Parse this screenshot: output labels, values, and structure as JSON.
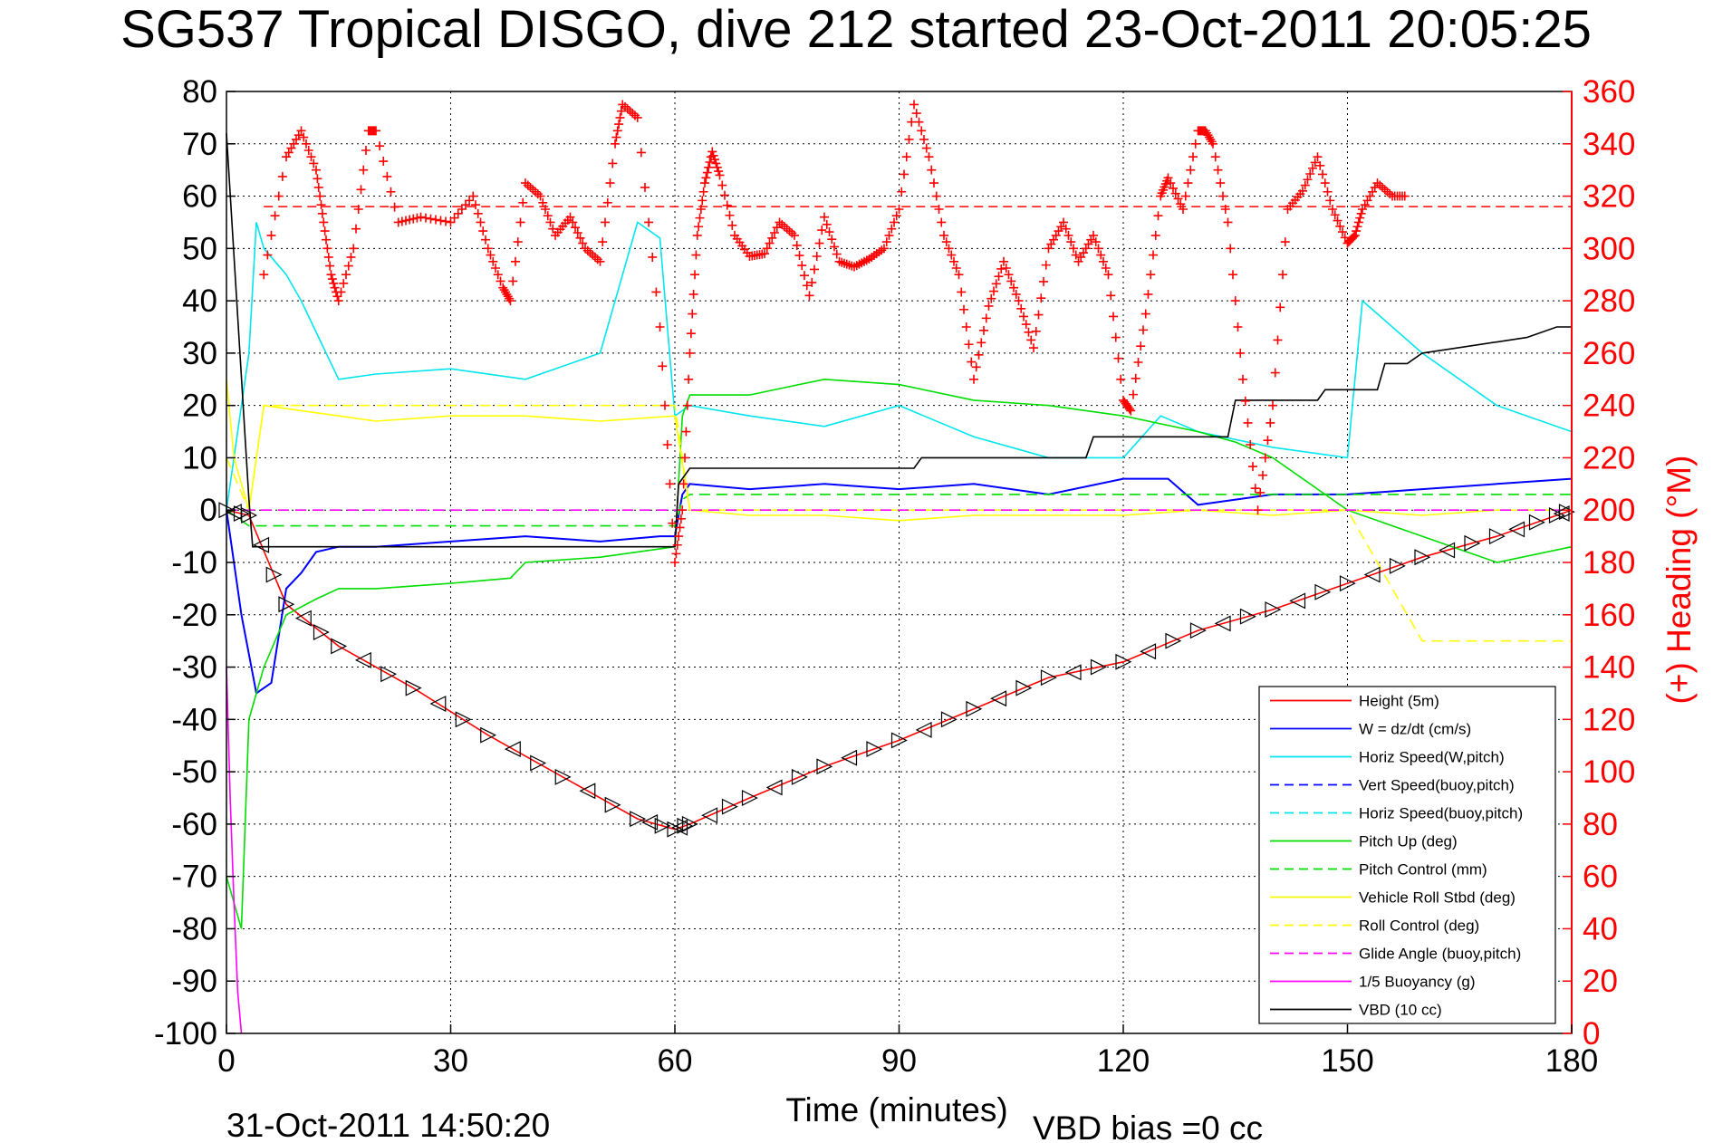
{
  "chart_data": {
    "type": "line",
    "title": "SG537 Tropical DISGO, dive 212 started 23-Oct-2011 20:05:25",
    "xlabel": "Time (minutes)",
    "ylabel": "",
    "y2label": "(+) Heading (°M)",
    "xlim": [
      0,
      180
    ],
    "ylim": [
      -100,
      80
    ],
    "y2lim": [
      0,
      360
    ],
    "x_ticks": [
      "0",
      "30",
      "60",
      "90",
      "120",
      "150",
      "180"
    ],
    "y_ticks": [
      "80",
      "70",
      "60",
      "50",
      "40",
      "30",
      "20",
      "10",
      "0",
      "-10",
      "-20",
      "-30",
      "-40",
      "-50",
      "-60",
      "-70",
      "-80",
      "-90",
      "-100"
    ],
    "y2_ticks": [
      "360",
      "340",
      "320",
      "300",
      "280",
      "260",
      "240",
      "220",
      "200",
      "180",
      "160",
      "140",
      "120",
      "100",
      "80",
      "60",
      "40",
      "20",
      "0"
    ],
    "grid": true,
    "legend_position": "lower-right",
    "footer_date": "31-Oct-2011 14:50:20",
    "footer_bias": "VBD bias =0 cc",
    "heading_reference": 316,
    "series": [
      {
        "name": "Height (5m)",
        "color": "#ff0000",
        "style": "solid",
        "x": [
          0,
          3,
          8,
          15,
          25,
          35,
          45,
          55,
          60,
          62,
          70,
          80,
          90,
          100,
          110,
          120,
          130,
          140,
          150,
          160,
          170,
          178,
          180
        ],
        "y": [
          0,
          -1,
          -18,
          -26,
          -34,
          -43,
          -51,
          -59,
          -61,
          -60,
          -55,
          -49,
          -44,
          -38,
          -32,
          -29,
          -23,
          -19,
          -14,
          -9,
          -5,
          -1,
          0
        ]
      },
      {
        "name": "W = dz/dt (cm/s)",
        "color": "#0000ff",
        "style": "solid",
        "x": [
          0,
          2,
          4,
          6,
          8,
          10,
          12,
          15,
          20,
          30,
          40,
          50,
          58,
          60,
          61,
          62,
          70,
          80,
          90,
          100,
          110,
          120,
          126,
          130,
          140,
          150,
          160,
          170,
          180
        ],
        "y": [
          0,
          -20,
          -35,
          -33,
          -15,
          -12,
          -8,
          -7,
          -7,
          -6,
          -5,
          -6,
          -5,
          -5,
          3,
          5,
          4,
          5,
          4,
          5,
          3,
          6,
          6,
          1,
          3,
          3,
          4,
          5,
          6
        ]
      },
      {
        "name": "Horiz Speed(W,pitch)",
        "color": "#00e5ee",
        "style": "solid",
        "x": [
          0,
          3,
          4,
          5,
          8,
          10,
          15,
          20,
          30,
          40,
          50,
          55,
          58,
          60,
          62,
          70,
          80,
          90,
          100,
          110,
          120,
          125,
          130,
          140,
          150,
          152,
          160,
          170,
          180
        ],
        "y": [
          0,
          30,
          55,
          50,
          45,
          40,
          25,
          26,
          27,
          25,
          30,
          55,
          52,
          18,
          20,
          18,
          16,
          20,
          14,
          10,
          10,
          18,
          15,
          12,
          10,
          40,
          30,
          20,
          15
        ]
      },
      {
        "name": "Vert Speed(buoy,pitch)",
        "color": "#0000ff",
        "style": "dashed",
        "x": [],
        "y": []
      },
      {
        "name": "Horiz Speed(buoy,pitch)",
        "color": "#00e5ee",
        "style": "dashed",
        "x": [],
        "y": []
      },
      {
        "name": "Pitch Up (deg)",
        "color": "#00dd00",
        "style": "solid",
        "x": [
          0,
          2,
          3,
          5,
          8,
          12,
          15,
          20,
          30,
          38,
          40,
          50,
          55,
          60,
          61,
          62,
          70,
          80,
          90,
          100,
          110,
          120,
          130,
          135,
          140,
          150,
          160,
          170,
          180
        ],
        "y": [
          -70,
          -80,
          -40,
          -30,
          -20,
          -17,
          -15,
          -15,
          -14,
          -13,
          -10,
          -9,
          -8,
          -7,
          18,
          22,
          22,
          25,
          24,
          21,
          20,
          18,
          15,
          13,
          10,
          0,
          -5,
          -10,
          -7
        ]
      },
      {
        "name": "Pitch Control (mm)",
        "color": "#00dd00",
        "style": "dashed",
        "x": [
          0,
          3,
          5,
          60,
          61,
          62,
          120,
          130,
          150,
          180
        ],
        "y": [
          0,
          -3,
          -3,
          -3,
          2,
          3,
          3,
          3,
          3,
          3
        ]
      },
      {
        "name": "Vehicle Roll Stbd (deg)",
        "color": "#ffff00",
        "style": "solid",
        "x": [
          0,
          1,
          3,
          5,
          10,
          20,
          30,
          40,
          50,
          60,
          62,
          70,
          80,
          90,
          100,
          110,
          120,
          130,
          140,
          150,
          160,
          170,
          180
        ],
        "y": [
          25,
          10,
          0,
          20,
          19,
          17,
          18,
          18,
          17,
          18,
          0,
          -1,
          -1,
          -2,
          -1,
          -1,
          -1,
          0,
          -1,
          0,
          -1,
          0,
          0
        ]
      },
      {
        "name": "Roll Control (deg)",
        "color": "#ffff00",
        "style": "dashed",
        "x": [
          0,
          3,
          5,
          60,
          62,
          120,
          150,
          160,
          180
        ],
        "y": [
          10,
          0,
          20,
          20,
          0,
          0,
          0,
          -25,
          -25
        ]
      },
      {
        "name": "Glide Angle (buoy,pitch)",
        "color": "#ff00ff",
        "style": "dashed",
        "x": [
          0,
          180
        ],
        "y": [
          0,
          0
        ]
      },
      {
        "name": "1/5 Buoyancy (g)",
        "color": "#ff00ff",
        "style": "solid",
        "x": [
          0,
          0.5,
          1,
          1.5,
          2
        ],
        "y": [
          -30,
          -55,
          -75,
          -92,
          -100
        ]
      },
      {
        "name": "VBD (10 cc)",
        "color": "#000000",
        "style": "solid",
        "x": [
          0,
          3,
          3.5,
          60,
          60.5,
          62,
          92,
          93,
          115,
          116,
          134,
          135,
          146,
          147,
          154,
          155,
          158,
          160,
          174,
          178,
          180
        ],
        "y": [
          72,
          2,
          -7,
          -7,
          5,
          8,
          8,
          10,
          10,
          14,
          14,
          21,
          21,
          23,
          23,
          28,
          28,
          30,
          33,
          35,
          35
        ]
      },
      {
        "name": "(+) Heading",
        "color": "#ff0000",
        "style": "marker",
        "axis": "right",
        "x": [
          5,
          8,
          10,
          12,
          13,
          14,
          15,
          17,
          19,
          20,
          23,
          26,
          30,
          33,
          35,
          37,
          38,
          40,
          42,
          44,
          46,
          48,
          50,
          52,
          53,
          55,
          58,
          60,
          61,
          62,
          63,
          64,
          65,
          66,
          68,
          70,
          72,
          74,
          76,
          78,
          80,
          82,
          84,
          86,
          88,
          90,
          92,
          94,
          96,
          98,
          100,
          102,
          104,
          106,
          108,
          110,
          112,
          114,
          116,
          118,
          120,
          121,
          123,
          125,
          126,
          128,
          130,
          131,
          132,
          134,
          136,
          138,
          140,
          142,
          144,
          146,
          148,
          150,
          151,
          152,
          154,
          156,
          158
        ],
        "y": [
          290,
          335,
          345,
          330,
          310,
          290,
          280,
          300,
          345,
          345,
          310,
          312,
          310,
          320,
          300,
          285,
          280,
          325,
          320,
          305,
          312,
          300,
          295,
          340,
          355,
          350,
          270,
          180,
          200,
          260,
          305,
          325,
          337,
          328,
          305,
          297,
          298,
          310,
          305,
          282,
          312,
          295,
          293,
          296,
          300,
          315,
          355,
          335,
          305,
          290,
          250,
          278,
          295,
          280,
          262,
          300,
          310,
          295,
          305,
          290,
          242,
          238,
          275,
          320,
          327,
          315,
          345,
          345,
          340,
          310,
          250,
          200,
          240,
          315,
          322,
          335,
          315,
          302,
          305,
          315,
          325,
          320,
          320
        ]
      }
    ]
  }
}
